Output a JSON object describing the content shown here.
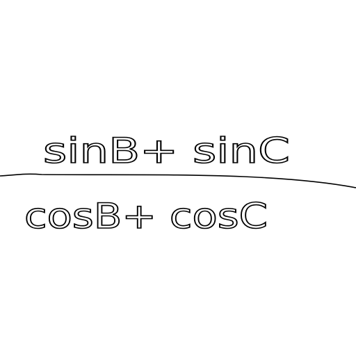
{
  "numerator": "sinB+ sinC",
  "denominator": "cosB+ cosC"
}
